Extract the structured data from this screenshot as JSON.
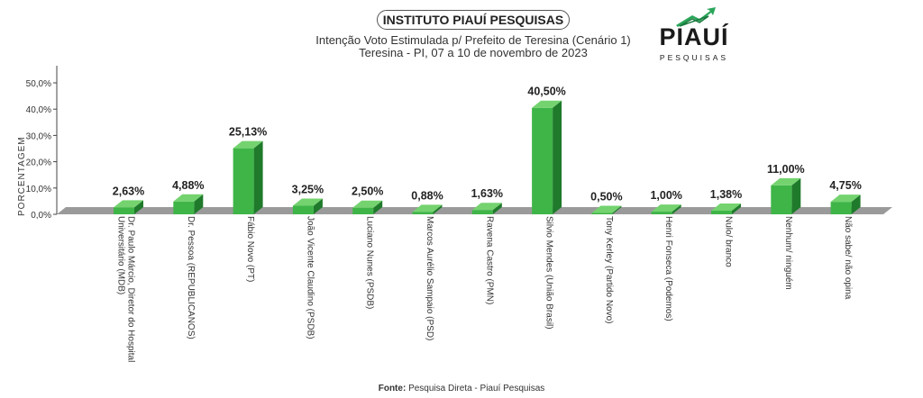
{
  "header": {
    "title": "INSTITUTO PIAUÍ PESQUISAS",
    "subtitle_line1": "Intenção Voto Estimulada p/ Prefeito de Teresina (Cenário 1)",
    "subtitle_line2": "Teresina - PI, 07 a 10 de novembro de 2023"
  },
  "logo": {
    "word": "PIAUÍ",
    "sub": "PESQUISAS"
  },
  "footer": {
    "source_label": "Fonte:",
    "source_text": "Pesquisa Direta - Piauí Pesquisas"
  },
  "colors": {
    "bar_front": "#3fb548",
    "bar_top": "#74d36f",
    "bar_side": "#1f7a2b",
    "floor": "#9a9a9a"
  },
  "chart_data": {
    "type": "bar",
    "title": "Intenção Voto Estimulada p/ Prefeito de Teresina (Cenário 1)",
    "ylabel": "PORCENTAGEM",
    "xlabel": "",
    "ylim": [
      0,
      50
    ],
    "yticks": [
      "0,0%",
      "10,0%",
      "20,0%",
      "30,0%",
      "40,0%",
      "50,0%"
    ],
    "grid": false,
    "categories": [
      "Dr. Paulo Márcio, Diretor do Hospital Universitário (MDB)",
      "Dr. Pessoa (REPUBLICANOS)",
      "Fábio Novo (PT)",
      "João Vicente Claudino (PSDB)",
      "Luciano Nunes (PSDB)",
      "Marcos Aurélio Sampaio (PSD)",
      "Ravena Castro (PMN)",
      "Silvio Mendes (União Brasil)",
      "Tony Kerley (Partido Novo)",
      "Henri Fonseca (Podemos)",
      "Nulo/ branco",
      "Nenhum/ ninguém",
      "Não sabe/ não opina"
    ],
    "values": [
      2.63,
      4.88,
      25.13,
      3.25,
      2.5,
      0.88,
      1.63,
      40.5,
      0.5,
      1.0,
      1.38,
      11.0,
      4.75
    ],
    "data_labels": [
      "2,63%",
      "4,88%",
      "25,13%",
      "3,25%",
      "2,50%",
      "0,88%",
      "1,63%",
      "40,50%",
      "0,50%",
      "1,00%",
      "1,38%",
      "11,00%",
      "4,75%"
    ]
  }
}
